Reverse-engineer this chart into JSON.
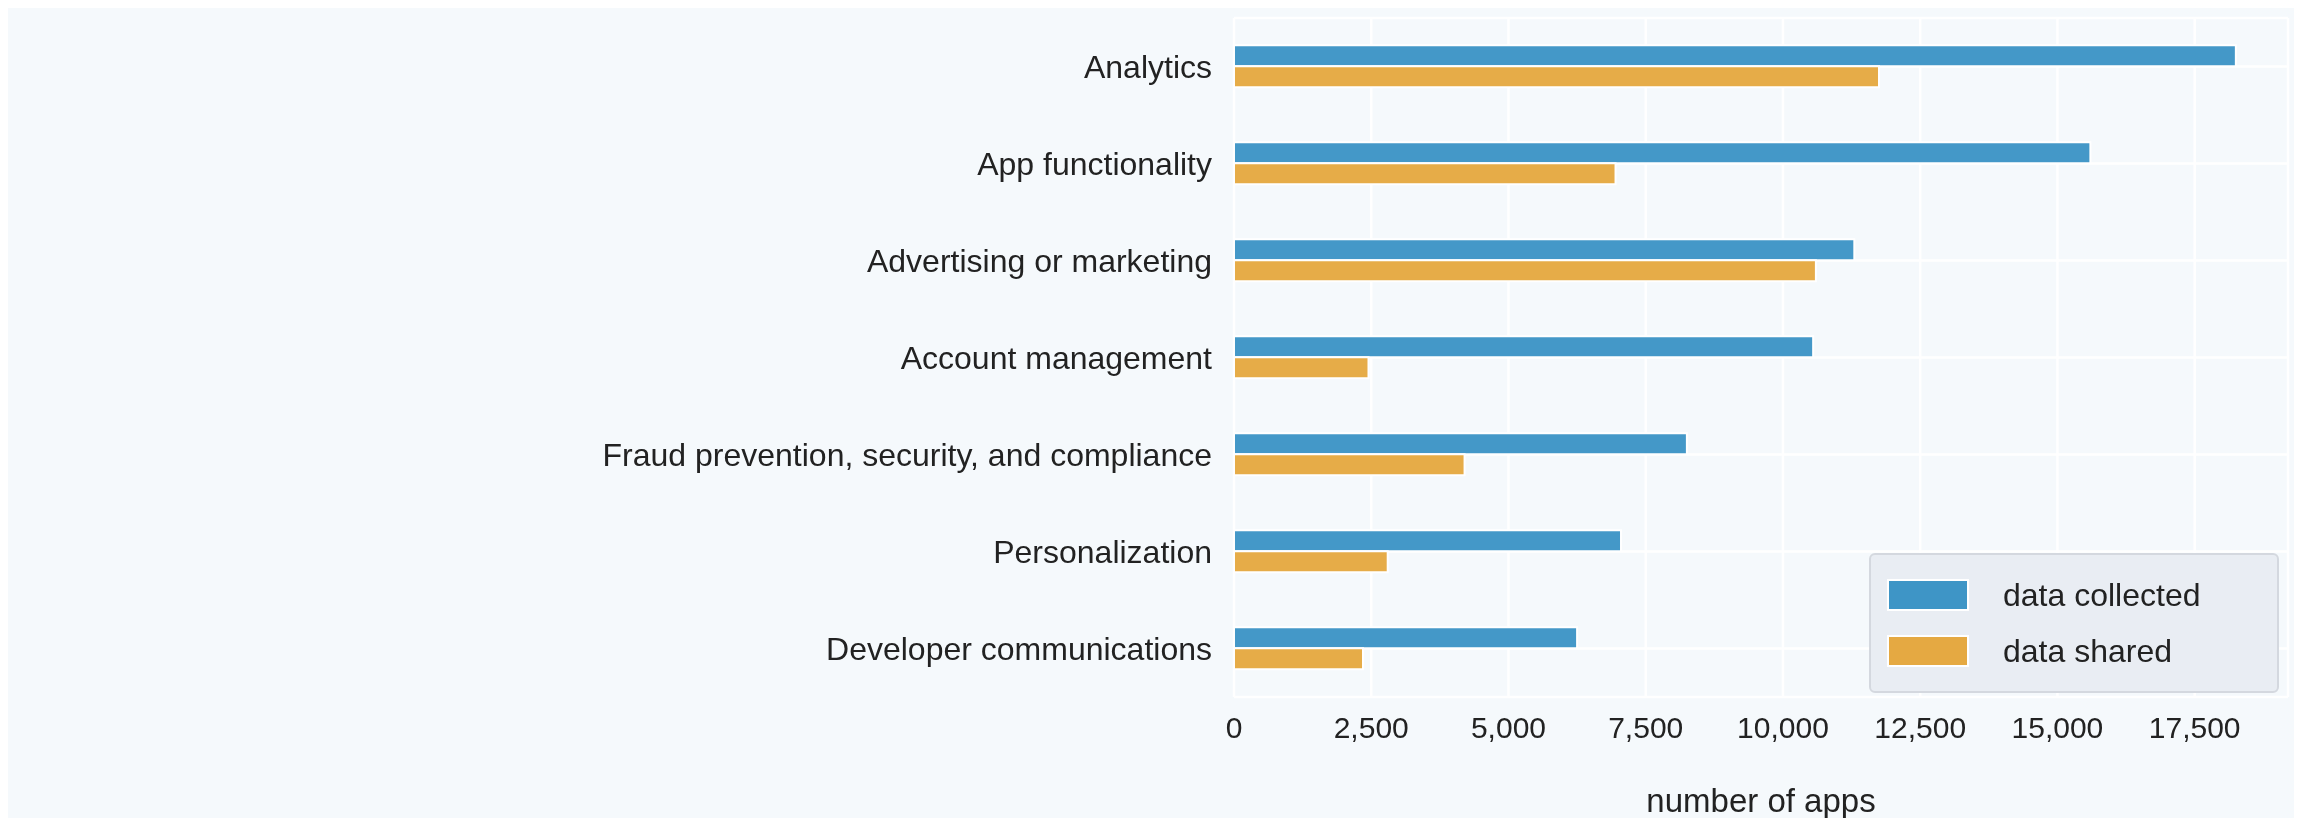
{
  "chart_data": {
    "type": "bar",
    "orientation": "horizontal",
    "xlabel": "number of apps",
    "categories": [
      "Analytics",
      "App functionality",
      "Advertising or marketing",
      "Account management",
      "Fraud prevention, security, and compliance",
      "Personalization",
      "Developer communications"
    ],
    "series": [
      {
        "name": "data collected",
        "color": "#3e95c6",
        "values": [
          18250,
          15600,
          11300,
          10550,
          8250,
          7050,
          6250
        ]
      },
      {
        "name": "data shared",
        "color": "#e5a942",
        "values": [
          11750,
          6950,
          10600,
          2450,
          4200,
          2800,
          2350
        ]
      }
    ],
    "xlim": [
      0,
      19200
    ],
    "xticks": [
      {
        "value": 0,
        "label": "0"
      },
      {
        "value": 2500,
        "label": "2,500"
      },
      {
        "value": 5000,
        "label": "5,000"
      },
      {
        "value": 7500,
        "label": "7,500"
      },
      {
        "value": 10000,
        "label": "10,000"
      },
      {
        "value": 12500,
        "label": "12,500"
      },
      {
        "value": 15000,
        "label": "15,000"
      },
      {
        "value": 17500,
        "label": "17,500"
      }
    ],
    "grid": true,
    "legend": "bottom right"
  }
}
